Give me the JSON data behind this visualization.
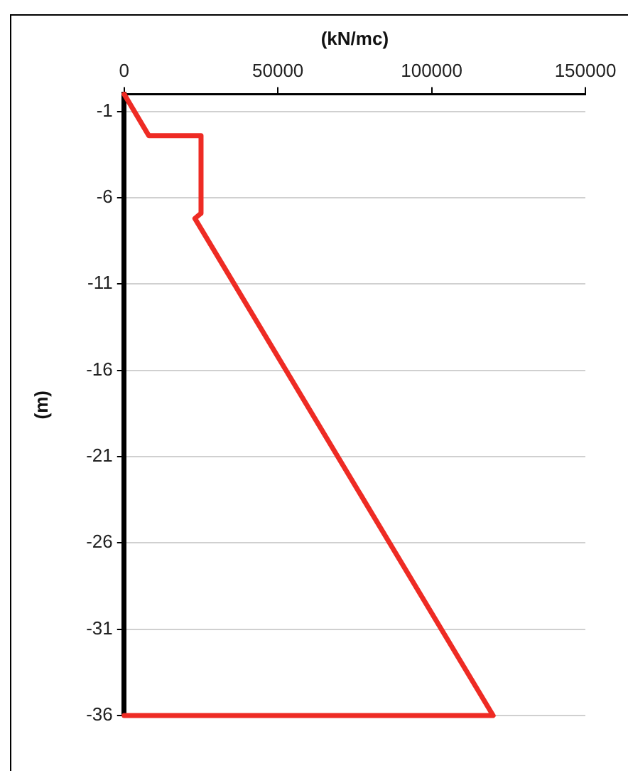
{
  "chart_data": {
    "type": "line",
    "xlabel": "(kN/mc)",
    "ylabel": "(m)",
    "xlim": [
      0,
      150000
    ],
    "xticks": [
      0,
      50000,
      100000,
      150000
    ],
    "ylim": [
      -36,
      0
    ],
    "yticks": [
      -1,
      -6,
      -11,
      -16,
      -21,
      -26,
      -31,
      -36
    ],
    "grid": "y",
    "legend": false,
    "marker": "none",
    "line_style": "solid",
    "series": [
      {
        "color": "#ee2b24",
        "x": [
          0,
          8000,
          25000,
          25000,
          23000,
          120000,
          0
        ],
        "values": [
          0,
          -2.4,
          -2.4,
          -6.9,
          -7.2,
          -36,
          -36
        ]
      }
    ]
  }
}
